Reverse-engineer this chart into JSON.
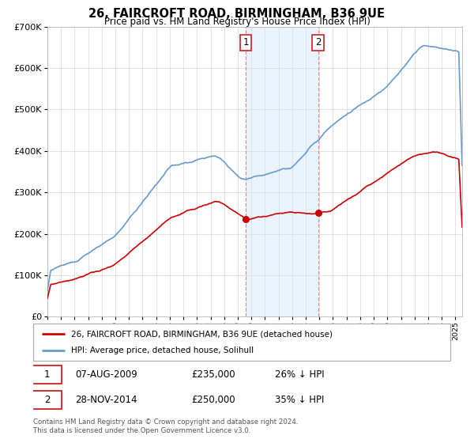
{
  "title": "26, FAIRCROFT ROAD, BIRMINGHAM, B36 9UE",
  "subtitle": "Price paid vs. HM Land Registry's House Price Index (HPI)",
  "red_label": "26, FAIRCROFT ROAD, BIRMINGHAM, B36 9UE (detached house)",
  "blue_label": "HPI: Average price, detached house, Solihull",
  "transaction1": {
    "label": "1",
    "date": "07-AUG-2009",
    "price": "£235,000",
    "pct": "26% ↓ HPI",
    "year": 2009.6
  },
  "transaction2": {
    "label": "2",
    "date": "28-NOV-2014",
    "price": "£250,000",
    "pct": "35% ↓ HPI",
    "year": 2014.9
  },
  "footer": "Contains HM Land Registry data © Crown copyright and database right 2024.\nThis data is licensed under the Open Government Licence v3.0.",
  "ylim": [
    0,
    700000
  ],
  "xlim_start": 1995,
  "xlim_end": 2025.5,
  "red_color": "#cc0000",
  "blue_color": "#6699cc",
  "shade_color": "#ddeeff",
  "marker_color": "#cc0000",
  "vline_color": "#ee8888",
  "box_color": "#cc3333",
  "grid_color": "#dddddd",
  "background_color": "#ffffff"
}
